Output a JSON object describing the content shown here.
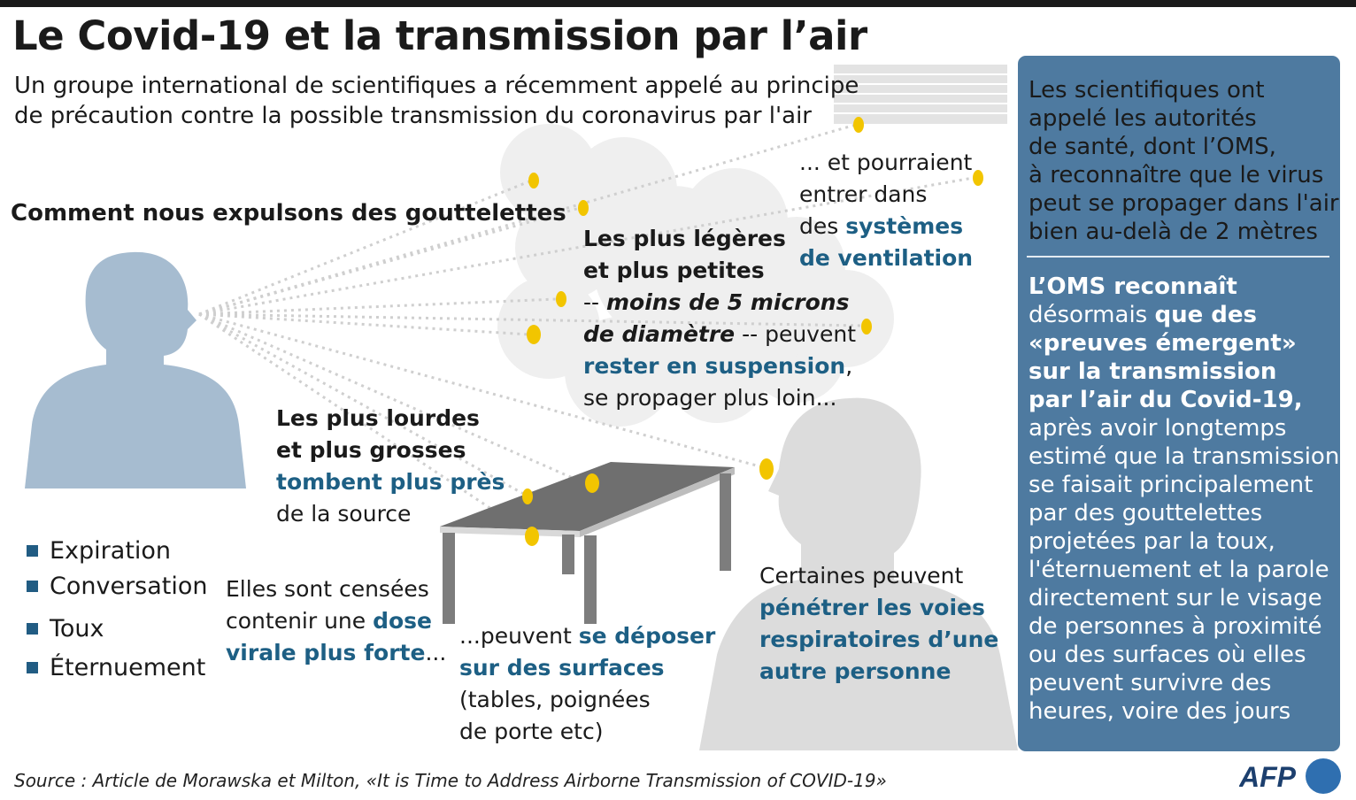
{
  "title": "Le Covid-19 et la transmission par l’air",
  "subtitle": [
    "Un groupe international de scientifiques a récemment appelé au principe",
    "de précaution contre la possible transmission du coronavirus par l'air"
  ],
  "heading_expulsion": "Comment nous expulsons des gouttelettes",
  "legend": [
    "Expiration",
    "Conversation",
    "Toux",
    "Éternuement"
  ],
  "light_droplets": {
    "l1": "Les plus légères",
    "l2": "et plus petites",
    "l3_a": "-- ",
    "l3_b": "moins de 5 microns",
    "l4_a": "de diamètre",
    "l4_b": " -- peuvent",
    "l5_a": "rester en suspension",
    "l5_b": ",",
    "l6": "se propager plus loin..."
  },
  "ventilation": {
    "l1": "... et pourraient",
    "l2": "entrer dans",
    "l3_a": "des ",
    "l3_b": "systèmes",
    "l4": "de ventilation"
  },
  "heavy_droplets": {
    "l1": "Les plus lourdes",
    "l2": "et plus grosses",
    "l3": "tombent plus près",
    "l4": "de la source"
  },
  "viral_dose": {
    "l1": "Elles sont censées",
    "l2_a": "contenir une ",
    "l2_b": "dose",
    "l3_a": "virale plus forte",
    "l3_b": "..."
  },
  "surfaces": {
    "l1_a": "...peuvent ",
    "l1_b": "se déposer",
    "l2": "sur des surfaces",
    "l3": "(tables, poignées",
    "l4": "de porte etc)"
  },
  "respiratory": {
    "l1": "Certaines peuvent",
    "l2": "pénétrer les voies",
    "l3": "respiratoires d’une",
    "l4": "autre personne"
  },
  "panel": {
    "p1": [
      "Les scientifiques ont",
      "appelé les autorités",
      "de santé, dont l’OMS,",
      "à reconnaître que le virus",
      "peut se propager dans l'air",
      "bien au-delà de 2 mètres"
    ],
    "p2_l1": "L’OMS reconnaît",
    "p2_l2_a": "désormais ",
    "p2_l2_b": "que des",
    "p2_l3": "«preuves émergent»",
    "p2_l4": "sur la transmission",
    "p2_l5": "par l’air du Covid-19,",
    "p2_rest": [
      "après avoir longtemps",
      "estimé que la transmission",
      "se faisait principalement",
      "par des gouttelettes",
      "projetées par la toux,",
      "l'éternuement et la parole",
      "directement sur le visage",
      "de personnes à proximité",
      "ou des surfaces où elles",
      "peuvent survivre des",
      "heures, voire des jours"
    ]
  },
  "source": "Source : Article de Morawska et Milton, «It is Time to Address Airborne Transmission of COVID-19»",
  "logo": "AFP",
  "colors": {
    "accent_blue": "#1d5f84",
    "panel_blue": "#4e7aa0",
    "droplet_yellow": "#f2c500",
    "figure_blue": "#a6bcd0",
    "figure_grey": "#dcdcdc",
    "table_grey": "#6f6f6f"
  }
}
